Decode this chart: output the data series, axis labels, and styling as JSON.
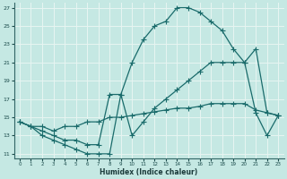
{
  "xlabel": "Humidex (Indice chaleur)",
  "xlim": [
    -0.5,
    23.5
  ],
  "ylim": [
    10.5,
    27.5
  ],
  "xticks": [
    0,
    1,
    2,
    3,
    4,
    5,
    6,
    7,
    8,
    9,
    10,
    11,
    12,
    13,
    14,
    15,
    16,
    17,
    18,
    19,
    20,
    21,
    22,
    23
  ],
  "yticks": [
    11,
    13,
    15,
    17,
    19,
    21,
    23,
    25,
    27
  ],
  "background_color": "#c5e8e3",
  "grid_color": "#e8f5f2",
  "line_color": "#1a6b6b",
  "line1_x": [
    0,
    1,
    2,
    3,
    4,
    5,
    6,
    7,
    8,
    9,
    10,
    11,
    12,
    13,
    14,
    15,
    16,
    17,
    18,
    19,
    20,
    21,
    22,
    23
  ],
  "line1_y": [
    14.5,
    14.0,
    14.0,
    13.5,
    14.0,
    14.0,
    14.5,
    14.5,
    15.0,
    15.0,
    15.2,
    15.4,
    15.6,
    15.8,
    16.0,
    16.0,
    16.2,
    16.5,
    16.5,
    16.5,
    16.5,
    15.8,
    15.5,
    15.2
  ],
  "line2_x": [
    0,
    1,
    2,
    3,
    4,
    5,
    6,
    7,
    8,
    9,
    10,
    11,
    12,
    13,
    14,
    15,
    16,
    17,
    18,
    19,
    20,
    21,
    22,
    23
  ],
  "line2_y": [
    14.5,
    14.0,
    13.5,
    13.0,
    12.5,
    12.5,
    12.0,
    12.0,
    17.5,
    17.5,
    21.0,
    23.5,
    25.0,
    25.5,
    27.0,
    27.0,
    26.5,
    25.5,
    24.5,
    22.5,
    21.0,
    22.5,
    15.5,
    15.2
  ],
  "line3_x": [
    0,
    1,
    2,
    3,
    4,
    5,
    6,
    7,
    8,
    9,
    10,
    11,
    12,
    13,
    14,
    15,
    16,
    17,
    18,
    19,
    20,
    21,
    22,
    23
  ],
  "line3_y": [
    14.5,
    14.0,
    13.0,
    12.5,
    12.0,
    11.5,
    11.0,
    11.0,
    11.0,
    17.5,
    13.0,
    14.5,
    16.0,
    17.0,
    18.0,
    19.0,
    20.0,
    21.0,
    21.0,
    21.0,
    21.0,
    15.5,
    13.0,
    15.2
  ]
}
